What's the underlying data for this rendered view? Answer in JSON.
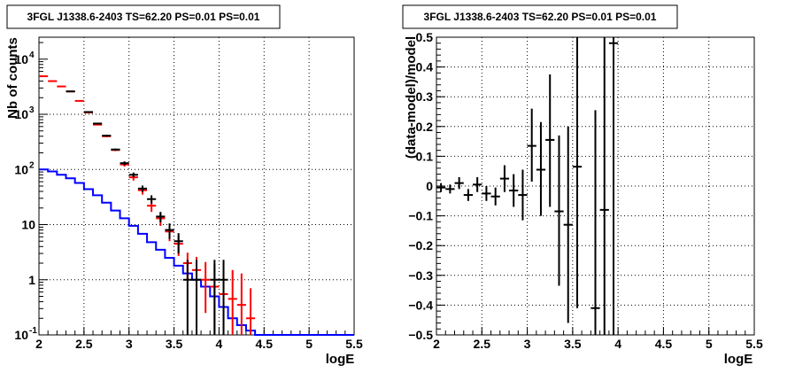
{
  "chart_data": [
    {
      "type": "line",
      "title": "3FGL J1338.6-2403 TS=62.20 PS=0.01 PS=0.01",
      "xlabel": "logE",
      "ylabel": "Nb of counts",
      "xlim": [
        2,
        5.5
      ],
      "ylim": [
        0.1,
        25000
      ],
      "ylog": true,
      "grid": true,
      "x_ticks": [
        "2",
        "2.5",
        "3",
        "3.5",
        "4",
        "4.5",
        "5",
        "5.5"
      ],
      "y_ticks": [
        {
          "value": 0.1,
          "label": "10",
          "exp": "-1"
        },
        {
          "value": 1,
          "label": "1",
          "exp": ""
        },
        {
          "value": 10,
          "label": "10",
          "exp": ""
        },
        {
          "value": 100,
          "label": "10",
          "exp": "2"
        },
        {
          "value": 1000,
          "label": "10",
          "exp": "3"
        },
        {
          "value": 10000,
          "label": "10",
          "exp": "4"
        }
      ],
      "series": [
        {
          "color": "#0000ff",
          "style": "step",
          "edges": [
            2.0,
            2.1,
            2.2,
            2.3,
            2.4,
            2.5,
            2.6,
            2.7,
            2.8,
            2.9,
            3.0,
            3.1,
            3.2,
            3.3,
            3.4,
            3.5,
            3.6,
            3.7,
            3.8,
            3.9,
            4.0,
            4.1,
            4.2,
            4.3,
            4.4,
            4.5,
            5.5
          ],
          "values": [
            100,
            92,
            80,
            69,
            57,
            44,
            34,
            25,
            18,
            13,
            9.5,
            6.8,
            4.8,
            3.5,
            2.5,
            1.8,
            1.3,
            1.0,
            0.75,
            0.5,
            0.32,
            0.2,
            0.15,
            0.12,
            0.1,
            0.1
          ]
        },
        {
          "color": "#ff0000",
          "style": "errorbar",
          "x": [
            2.05,
            2.15,
            2.25,
            2.35,
            2.45,
            2.55,
            2.65,
            2.75,
            2.85,
            2.95,
            3.05,
            3.15,
            3.25,
            3.35,
            3.45,
            3.55,
            3.65,
            3.75,
            3.85,
            3.95,
            4.05,
            4.15,
            4.25,
            4.35
          ],
          "y": [
            4900,
            4000,
            3200,
            2600,
            1750,
            1080,
            650,
            400,
            225,
            123,
            72,
            42,
            22,
            13,
            7.5,
            4.5,
            2.0,
            1.5,
            1.0,
            0.75,
            0.55,
            0.45,
            0.35,
            0.2
          ],
          "ylo": [
            4800,
            3930,
            3140,
            2550,
            1710,
            1050,
            630,
            385,
            215,
            113,
            63,
            35,
            17,
            9.5,
            5.0,
            2.7,
            0.95,
            0.6,
            0.25,
            0.1,
            0.1,
            0.1,
            0.1,
            0.1
          ],
          "yhi": [
            5000,
            4070,
            3260,
            2650,
            1790,
            1110,
            670,
            415,
            235,
            133,
            81,
            49,
            27,
            16.5,
            10,
            6.3,
            3.1,
            2.6,
            2.1,
            1.9,
            1.6,
            1.5,
            1.3,
            0.7
          ]
        },
        {
          "color": "#000000",
          "style": "errorbar",
          "x": [
            2.35,
            2.55,
            2.65,
            2.75,
            2.85,
            2.95,
            3.05,
            3.15,
            3.25,
            3.35,
            3.45,
            3.55,
            3.65,
            3.75,
            3.95,
            4.05
          ],
          "y": [
            2600,
            1100,
            680,
            410,
            230,
            130,
            80,
            45,
            29,
            14,
            8,
            5,
            1,
            1,
            1,
            1
          ],
          "ylo": [
            2550,
            1070,
            660,
            395,
            220,
            120,
            72,
            39,
            24,
            11,
            5.5,
            3,
            0.1,
            0.1,
            0.1,
            0.1
          ],
          "yhi": [
            2650,
            1130,
            700,
            425,
            240,
            140,
            88,
            51,
            34,
            17,
            10.5,
            7,
            2.3,
            2.3,
            2.3,
            2.3
          ]
        }
      ]
    },
    {
      "type": "scatter",
      "title": "3FGL J1338.6-2403 TS=62.20 PS=0.01 PS=0.01",
      "xlabel": "logE",
      "ylabel": "(data-model)/model",
      "xlim": [
        2,
        5.5
      ],
      "ylim": [
        -0.5,
        0.5
      ],
      "ylog": false,
      "grid": true,
      "x_ticks": [
        "2",
        "2.5",
        "3",
        "3.5",
        "4",
        "4.5",
        "5",
        "5.5"
      ],
      "y_ticks": [
        {
          "value": -0.5,
          "label": "−0.5",
          "exp": ""
        },
        {
          "value": -0.4,
          "label": "−0.4",
          "exp": ""
        },
        {
          "value": -0.3,
          "label": "−0.3",
          "exp": ""
        },
        {
          "value": -0.2,
          "label": "−0.2",
          "exp": ""
        },
        {
          "value": -0.1,
          "label": "−0.1",
          "exp": ""
        },
        {
          "value": 0,
          "label": "0",
          "exp": ""
        },
        {
          "value": 0.1,
          "label": "0.1",
          "exp": ""
        },
        {
          "value": 0.2,
          "label": "0.2",
          "exp": ""
        },
        {
          "value": 0.3,
          "label": "0.3",
          "exp": ""
        },
        {
          "value": 0.4,
          "label": "0.4",
          "exp": ""
        },
        {
          "value": 0.5,
          "label": "0.5",
          "exp": ""
        }
      ],
      "series": [
        {
          "color": "#000000",
          "style": "errorbar",
          "x": [
            2.05,
            2.15,
            2.25,
            2.35,
            2.45,
            2.55,
            2.65,
            2.75,
            2.85,
            2.95,
            3.05,
            3.15,
            3.25,
            3.35,
            3.45,
            3.55,
            3.85,
            3.95
          ],
          "y": [
            -0.005,
            -0.01,
            0.01,
            -0.03,
            0.005,
            -0.025,
            -0.035,
            0.025,
            -0.015,
            -0.03,
            0.135,
            0.055,
            0.155,
            -0.085,
            -0.13,
            0.065,
            -0.08,
            0.48
          ],
          "ylo": [
            -0.02,
            -0.025,
            -0.01,
            -0.05,
            -0.02,
            -0.05,
            -0.065,
            -0.02,
            -0.07,
            -0.115,
            0.015,
            -0.1,
            -0.07,
            -0.335,
            -0.46,
            -0.41,
            -0.5,
            -0.5
          ],
          "yhi": [
            0.01,
            0.005,
            0.03,
            -0.01,
            0.03,
            0.0,
            -0.005,
            0.07,
            0.04,
            0.055,
            0.26,
            0.215,
            0.375,
            0.17,
            0.2,
            0.5,
            0.5,
            0.5
          ]
        },
        {
          "color": "#000000",
          "style": "marker",
          "x": [
            3.75
          ],
          "y": [
            -0.41
          ],
          "ylo": [
            -0.5
          ],
          "yhi": [
            0.255
          ]
        }
      ]
    }
  ]
}
